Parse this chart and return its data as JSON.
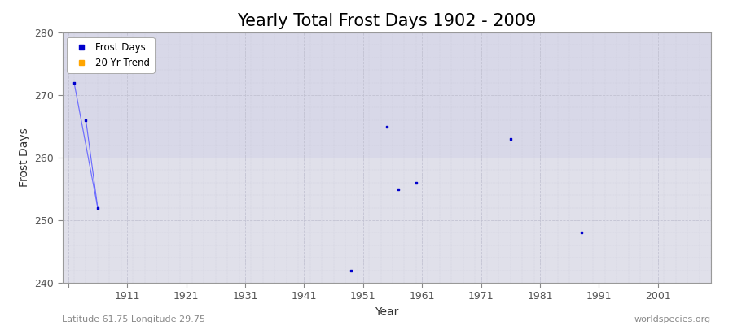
{
  "title": "Yearly Total Frost Days 1902 - 2009",
  "xlabel": "Year",
  "ylabel": "Frost Days",
  "xlim": [
    1900,
    2010
  ],
  "ylim": [
    240,
    280
  ],
  "yticks": [
    240,
    250,
    260,
    270,
    280
  ],
  "xticks": [
    1901,
    1911,
    1921,
    1931,
    1941,
    1951,
    1961,
    1971,
    1981,
    1991,
    2001
  ],
  "xtick_labels": [
    "",
    "1911",
    "1921",
    "1931",
    "1941",
    "1951",
    "1961",
    "1971",
    "1981",
    "1991",
    "2001"
  ],
  "scatter_x": [
    1902,
    1904,
    1906,
    1949,
    1955,
    1957,
    1960,
    1976,
    1988
  ],
  "scatter_y": [
    272,
    266,
    252,
    242,
    265,
    255,
    256,
    263,
    248
  ],
  "line_segments": [
    {
      "x": [
        1902,
        1906
      ],
      "y": [
        272,
        252
      ]
    },
    {
      "x": [
        1904,
        1906
      ],
      "y": [
        266,
        252
      ]
    }
  ],
  "scatter_color": "#0000cc",
  "line_color": "#6666ff",
  "bg_upper_color": "#dcdce8",
  "bg_lower_color": "#e4e4ee",
  "plot_bg_color": "#e0e0ec",
  "grid_color": "#c0c0d0",
  "legend_frost_color": "#0000cc",
  "legend_trend_color": "#ffa500",
  "footnote_left": "Latitude 61.75 Longitude 29.75",
  "footnote_right": "worldspecies.org",
  "title_fontsize": 15,
  "axis_label_fontsize": 10,
  "tick_fontsize": 9,
  "footnote_fontsize": 8,
  "band_y_split": 260,
  "band_upper_color": "#d8d8e8",
  "band_lower_color": "#e0e0ea"
}
